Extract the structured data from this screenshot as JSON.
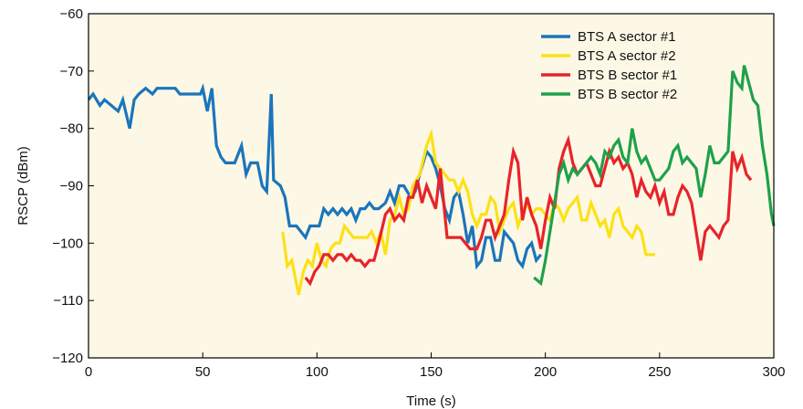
{
  "chart_data": {
    "type": "line",
    "title": "",
    "xlabel": "Time (s)",
    "ylabel": "RSCP (dBm)",
    "xlim": [
      0,
      300
    ],
    "ylim": [
      -120,
      -60
    ],
    "xticks": [
      0,
      50,
      100,
      150,
      200,
      250,
      300
    ],
    "yticks": [
      -60,
      -70,
      -80,
      -90,
      -100,
      -110,
      -120
    ],
    "grid": false,
    "plot_background": "#fdf8e6",
    "legend": {
      "position": "top-right"
    },
    "series": [
      {
        "name": "BTS A sector #1",
        "color": "#1b75bb",
        "points": [
          [
            0,
            -75
          ],
          [
            2,
            -74
          ],
          [
            5,
            -76
          ],
          [
            7,
            -75
          ],
          [
            10,
            -76
          ],
          [
            13,
            -77
          ],
          [
            15,
            -75
          ],
          [
            18,
            -80
          ],
          [
            20,
            -75
          ],
          [
            22,
            -74
          ],
          [
            25,
            -73
          ],
          [
            28,
            -74
          ],
          [
            30,
            -73
          ],
          [
            35,
            -73
          ],
          [
            38,
            -73
          ],
          [
            40,
            -74
          ],
          [
            45,
            -74
          ],
          [
            49,
            -74
          ],
          [
            50,
            -73
          ],
          [
            52,
            -77
          ],
          [
            54,
            -73
          ],
          [
            56,
            -83
          ],
          [
            58,
            -85
          ],
          [
            60,
            -86
          ],
          [
            64,
            -86
          ],
          [
            67,
            -83
          ],
          [
            69,
            -88
          ],
          [
            71,
            -86
          ],
          [
            74,
            -86
          ],
          [
            76,
            -90
          ],
          [
            78,
            -91
          ],
          [
            80,
            -74
          ],
          [
            81,
            -89
          ],
          [
            84,
            -90
          ],
          [
            86,
            -92
          ],
          [
            88,
            -97
          ],
          [
            91,
            -97
          ],
          [
            93,
            -98
          ],
          [
            95,
            -99
          ],
          [
            97,
            -97
          ],
          [
            99,
            -97
          ],
          [
            101,
            -97
          ],
          [
            103,
            -94
          ],
          [
            105,
            -95
          ],
          [
            107,
            -94
          ],
          [
            109,
            -95
          ],
          [
            111,
            -94
          ],
          [
            113,
            -95
          ],
          [
            115,
            -94
          ],
          [
            117,
            -96
          ],
          [
            119,
            -94
          ],
          [
            121,
            -94
          ],
          [
            123,
            -93
          ],
          [
            125,
            -94
          ],
          [
            127,
            -94
          ],
          [
            130,
            -93
          ],
          [
            132,
            -91
          ],
          [
            134,
            -93
          ],
          [
            136,
            -90
          ],
          [
            138,
            -90
          ],
          [
            141,
            -92
          ],
          [
            143,
            -91
          ],
          [
            145,
            -88
          ],
          [
            148,
            -84
          ],
          [
            150,
            -85
          ],
          [
            152,
            -87
          ],
          [
            154,
            -90
          ],
          [
            156,
            -94
          ],
          [
            158,
            -96
          ],
          [
            160,
            -92
          ],
          [
            162,
            -91
          ],
          [
            164,
            -95
          ],
          [
            166,
            -100
          ],
          [
            168,
            -97
          ],
          [
            170,
            -104
          ],
          [
            172,
            -103
          ],
          [
            174,
            -99
          ],
          [
            176,
            -99
          ],
          [
            178,
            -103
          ],
          [
            180,
            -103
          ],
          [
            182,
            -98
          ],
          [
            184,
            -99
          ],
          [
            186,
            -100
          ],
          [
            188,
            -103
          ],
          [
            190,
            -104
          ],
          [
            192,
            -101
          ],
          [
            194,
            -100
          ],
          [
            196,
            -103
          ],
          [
            198,
            -102
          ]
        ]
      },
      {
        "name": "BTS A sector #2",
        "color": "#fce116",
        "points": [
          [
            85,
            -98
          ],
          [
            87,
            -104
          ],
          [
            89,
            -103
          ],
          [
            92,
            -109
          ],
          [
            94,
            -105
          ],
          [
            96,
            -103
          ],
          [
            98,
            -104
          ],
          [
            100,
            -100
          ],
          [
            102,
            -103
          ],
          [
            104,
            -104
          ],
          [
            106,
            -101
          ],
          [
            108,
            -100
          ],
          [
            110,
            -100
          ],
          [
            112,
            -97
          ],
          [
            114,
            -98
          ],
          [
            116,
            -99
          ],
          [
            118,
            -99
          ],
          [
            120,
            -99
          ],
          [
            122,
            -99
          ],
          [
            124,
            -98
          ],
          [
            126,
            -100
          ],
          [
            128,
            -98
          ],
          [
            130,
            -102
          ],
          [
            132,
            -96
          ],
          [
            134,
            -95
          ],
          [
            136,
            -92
          ],
          [
            138,
            -95
          ],
          [
            140,
            -94
          ],
          [
            142,
            -90
          ],
          [
            145,
            -88
          ],
          [
            148,
            -83
          ],
          [
            150,
            -81
          ],
          [
            152,
            -86
          ],
          [
            154,
            -87
          ],
          [
            156,
            -88
          ],
          [
            158,
            -89
          ],
          [
            160,
            -89
          ],
          [
            162,
            -91
          ],
          [
            164,
            -89
          ],
          [
            166,
            -91
          ],
          [
            168,
            -95
          ],
          [
            170,
            -97
          ],
          [
            172,
            -95
          ],
          [
            174,
            -95
          ],
          [
            176,
            -92
          ],
          [
            178,
            -93
          ],
          [
            180,
            -98
          ],
          [
            182,
            -96
          ],
          [
            184,
            -94
          ],
          [
            186,
            -93
          ],
          [
            188,
            -97
          ],
          [
            190,
            -95
          ],
          [
            192,
            -93
          ],
          [
            194,
            -95
          ],
          [
            196,
            -94
          ],
          [
            198,
            -94
          ],
          [
            200,
            -95
          ],
          [
            202,
            -96
          ],
          [
            204,
            -93
          ],
          [
            206,
            -94
          ],
          [
            208,
            -96
          ],
          [
            210,
            -94
          ],
          [
            212,
            -93
          ],
          [
            214,
            -92
          ],
          [
            216,
            -96
          ],
          [
            218,
            -96
          ],
          [
            220,
            -93
          ],
          [
            222,
            -95
          ],
          [
            224,
            -97
          ],
          [
            226,
            -96
          ],
          [
            228,
            -99
          ],
          [
            230,
            -95
          ],
          [
            232,
            -94
          ],
          [
            234,
            -97
          ],
          [
            236,
            -98
          ],
          [
            238,
            -99
          ],
          [
            240,
            -97
          ],
          [
            242,
            -98
          ],
          [
            244,
            -102
          ],
          [
            246,
            -102
          ],
          [
            248,
            -102
          ]
        ]
      },
      {
        "name": "BTS B sector #1",
        "color": "#e8232a",
        "points": [
          [
            95,
            -106
          ],
          [
            97,
            -107
          ],
          [
            99,
            -105
          ],
          [
            101,
            -104
          ],
          [
            103,
            -102
          ],
          [
            105,
            -102
          ],
          [
            107,
            -103
          ],
          [
            109,
            -102
          ],
          [
            111,
            -102
          ],
          [
            113,
            -103
          ],
          [
            115,
            -102
          ],
          [
            117,
            -103
          ],
          [
            119,
            -103
          ],
          [
            121,
            -104
          ],
          [
            123,
            -103
          ],
          [
            125,
            -103
          ],
          [
            127,
            -100
          ],
          [
            130,
            -95
          ],
          [
            132,
            -94
          ],
          [
            134,
            -96
          ],
          [
            136,
            -95
          ],
          [
            138,
            -96
          ],
          [
            140,
            -92
          ],
          [
            142,
            -92
          ],
          [
            144,
            -89
          ],
          [
            146,
            -93
          ],
          [
            148,
            -90
          ],
          [
            150,
            -92
          ],
          [
            152,
            -94
          ],
          [
            154,
            -87
          ],
          [
            157,
            -99
          ],
          [
            160,
            -99
          ],
          [
            163,
            -99
          ],
          [
            167,
            -101
          ],
          [
            170,
            -101
          ],
          [
            172,
            -99
          ],
          [
            174,
            -96
          ],
          [
            176,
            -96
          ],
          [
            178,
            -99
          ],
          [
            180,
            -97
          ],
          [
            182,
            -95
          ],
          [
            184,
            -89
          ],
          [
            186,
            -84
          ],
          [
            188,
            -86
          ],
          [
            190,
            -96
          ],
          [
            192,
            -92
          ],
          [
            194,
            -95
          ],
          [
            196,
            -97
          ],
          [
            198,
            -101
          ],
          [
            200,
            -96
          ],
          [
            202,
            -92
          ],
          [
            204,
            -94
          ],
          [
            206,
            -87
          ],
          [
            208,
            -84
          ],
          [
            210,
            -82
          ],
          [
            212,
            -86
          ],
          [
            214,
            -88
          ],
          [
            216,
            -87
          ],
          [
            218,
            -86
          ],
          [
            220,
            -88
          ],
          [
            222,
            -90
          ],
          [
            224,
            -90
          ],
          [
            226,
            -87
          ],
          [
            228,
            -84
          ],
          [
            230,
            -86
          ],
          [
            232,
            -85
          ],
          [
            234,
            -87
          ],
          [
            236,
            -86
          ],
          [
            238,
            -88
          ],
          [
            240,
            -92
          ],
          [
            242,
            -89
          ],
          [
            244,
            -91
          ],
          [
            246,
            -92
          ],
          [
            248,
            -90
          ],
          [
            250,
            -93
          ],
          [
            252,
            -91
          ],
          [
            254,
            -95
          ],
          [
            256,
            -95
          ],
          [
            258,
            -92
          ],
          [
            260,
            -90
          ],
          [
            262,
            -91
          ],
          [
            264,
            -93
          ],
          [
            266,
            -98
          ],
          [
            268,
            -103
          ],
          [
            270,
            -98
          ],
          [
            272,
            -97
          ],
          [
            274,
            -98
          ],
          [
            276,
            -99
          ],
          [
            278,
            -97
          ],
          [
            280,
            -96
          ],
          [
            282,
            -84
          ],
          [
            284,
            -87
          ],
          [
            286,
            -85
          ],
          [
            288,
            -88
          ],
          [
            290,
            -89
          ]
        ]
      },
      {
        "name": "BTS B sector #2",
        "color": "#1ea14a",
        "points": [
          [
            195,
            -106
          ],
          [
            198,
            -107
          ],
          [
            200,
            -103
          ],
          [
            202,
            -98
          ],
          [
            204,
            -93
          ],
          [
            206,
            -88
          ],
          [
            208,
            -86
          ],
          [
            210,
            -89
          ],
          [
            212,
            -87
          ],
          [
            214,
            -88
          ],
          [
            216,
            -87
          ],
          [
            218,
            -86
          ],
          [
            220,
            -85
          ],
          [
            222,
            -86
          ],
          [
            224,
            -88
          ],
          [
            226,
            -84
          ],
          [
            228,
            -85
          ],
          [
            230,
            -83
          ],
          [
            232,
            -82
          ],
          [
            234,
            -85
          ],
          [
            236,
            -86
          ],
          [
            238,
            -80
          ],
          [
            240,
            -84
          ],
          [
            242,
            -86
          ],
          [
            244,
            -85
          ],
          [
            246,
            -87
          ],
          [
            248,
            -89
          ],
          [
            250,
            -89
          ],
          [
            252,
            -88
          ],
          [
            254,
            -87
          ],
          [
            256,
            -84
          ],
          [
            258,
            -83
          ],
          [
            260,
            -86
          ],
          [
            262,
            -85
          ],
          [
            264,
            -86
          ],
          [
            266,
            -87
          ],
          [
            268,
            -92
          ],
          [
            270,
            -88
          ],
          [
            272,
            -83
          ],
          [
            274,
            -86
          ],
          [
            276,
            -86
          ],
          [
            278,
            -85
          ],
          [
            280,
            -84
          ],
          [
            282,
            -70
          ],
          [
            284,
            -72
          ],
          [
            286,
            -73
          ],
          [
            287,
            -69
          ],
          [
            289,
            -72
          ],
          [
            291,
            -75
          ],
          [
            293,
            -76
          ],
          [
            295,
            -83
          ],
          [
            297,
            -88
          ],
          [
            299,
            -95
          ],
          [
            300,
            -97
          ]
        ]
      }
    ]
  }
}
